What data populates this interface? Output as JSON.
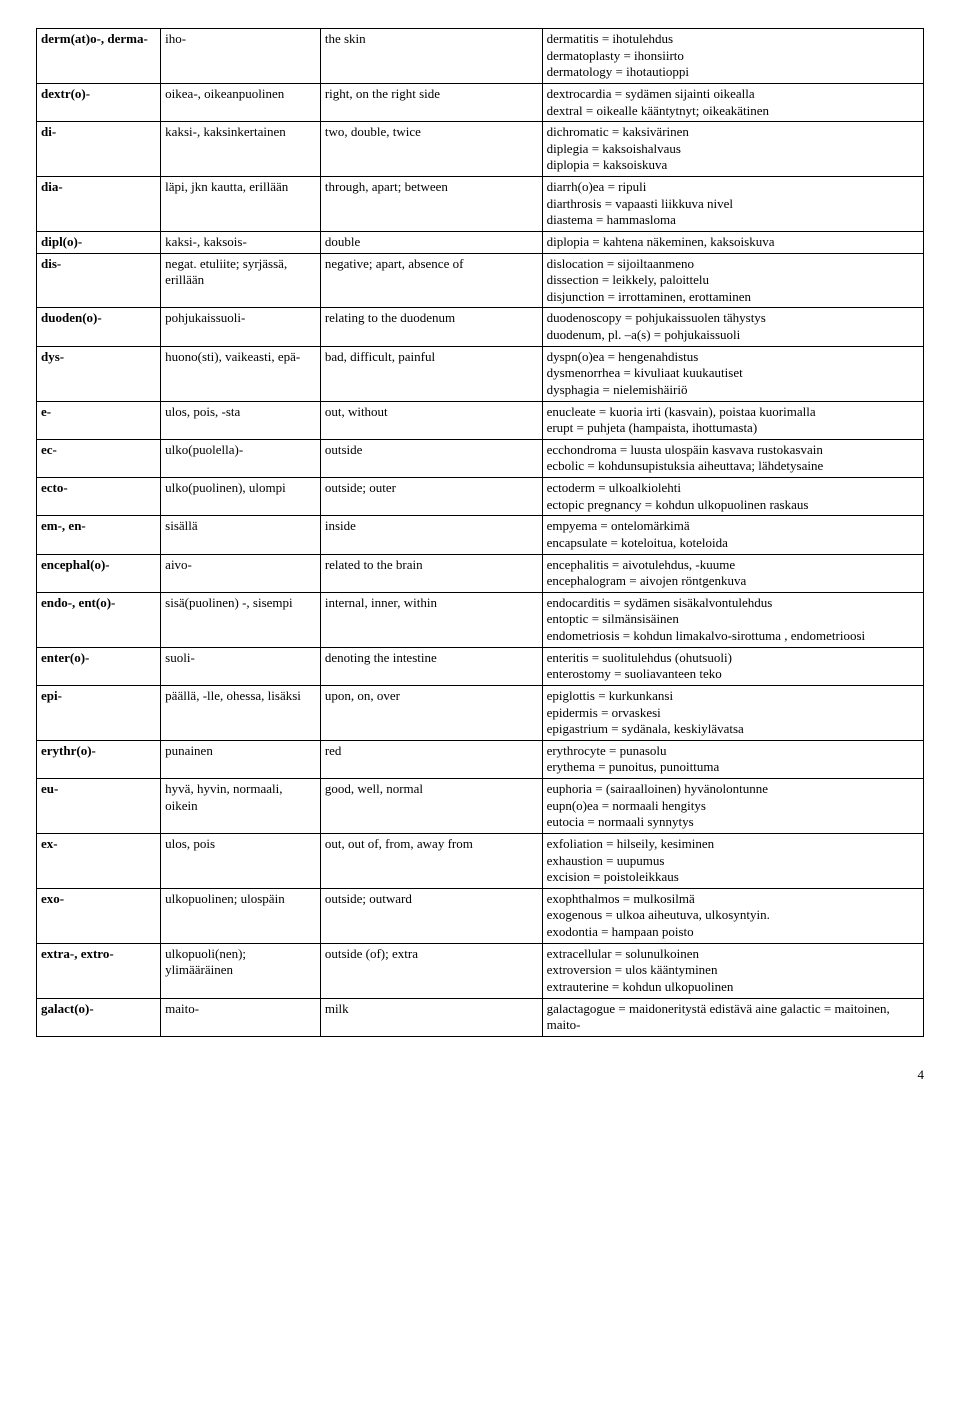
{
  "page_number": "4",
  "rows": [
    {
      "prefix": "derm(at)o-, derma-",
      "fi": "iho-",
      "en": "the skin",
      "ex": "dermatitis = ihotulehdus\ndermatoplasty = ihonsiirto\ndermatology = ihotautioppi"
    },
    {
      "prefix": "dextr(o)-",
      "fi": "oikea-, oikeanpuolinen",
      "en": "right, on the right side",
      "ex": "dextrocardia = sydämen sijainti oikealla\ndextral = oikealle kääntytnyt; oikeakätinen"
    },
    {
      "prefix": "di-",
      "fi": "kaksi-, kaksinkertainen",
      "en": "two, double, twice",
      "ex": "dichromatic = kaksivärinen\ndiplegia = kaksoishalvaus\ndiplopia = kaksoiskuva"
    },
    {
      "prefix": "dia-",
      "fi": "läpi, jkn kautta, erillään",
      "en": "through, apart; between",
      "ex": "diarrh(o)ea = ripuli\ndiarthrosis = vapaasti liikkuva nivel\ndiastema = hammasloma"
    },
    {
      "prefix": "dipl(o)-",
      "fi": "kaksi-, kaksois-",
      "en": "double",
      "ex": "diplopia = kahtena näkeminen, kaksoiskuva"
    },
    {
      "prefix": "dis-",
      "fi": "negat. etuliite; syrjässä, erillään",
      "en": "negative; apart, absence of",
      "ex": "dislocation = sijoiltaanmeno\ndissection = leikkely, paloittelu\ndisjunction = irrottaminen, erottaminen"
    },
    {
      "prefix": "duoden(o)-",
      "fi": "pohjukaissuoli-",
      "en": "relating to the duodenum",
      "ex": "duodenoscopy = pohjukaissuolen tähystys\nduodenum, pl. –a(s) = pohjukaissuoli"
    },
    {
      "prefix": "dys-",
      "fi": "huono(sti), vaikeasti, epä-",
      "en": "bad, difficult, painful",
      "ex": "dyspn(o)ea = hengenahdistus\ndysmenorrhea = kivuliaat kuukautiset\ndysphagia = nielemishäiriö"
    },
    {
      "prefix": "e-",
      "fi": "ulos, pois, -sta",
      "en": "out, without",
      "ex": "enucleate = kuoria irti (kasvain), poistaa kuorimalla\nerupt = puhjeta (hampaista, ihottumasta)"
    },
    {
      "prefix": "ec-",
      "fi": "ulko(puolella)-",
      "en": "outside",
      "ex": "ecchondroma = luusta ulospäin kasvava rustokasvain\necbolic = kohdunsupistuksia aiheuttava; lähdetysaine"
    },
    {
      "prefix": "ecto-",
      "fi": "ulko(puolinen), ulompi",
      "en": "outside; outer",
      "ex": "ectoderm = ulkoalkiolehti\nectopic pregnancy = kohdun ulkopuolinen raskaus"
    },
    {
      "prefix": "em-, en-",
      "fi": "sisällä",
      "en": "inside",
      "ex": "empyema = ontelomärkimä\nencapsulate = koteloitua, koteloida"
    },
    {
      "prefix": "encephal(o)-",
      "fi": "aivo-",
      "en": "related to the brain",
      "ex": "encephalitis = aivotulehdus, -kuume\nencephalogram = aivojen röntgenkuva"
    },
    {
      "prefix": "endo-, ent(o)-",
      "fi": "sisä(puolinen) -, sisempi",
      "en": "internal, inner, within",
      "ex": "endocarditis = sydämen sisäkalvontulehdus\nentoptic = silmänsisäinen\nendometriosis =  kohdun limakalvo-sirottuma , endometrioosi"
    },
    {
      "prefix": "enter(o)-",
      "fi": "suoli-",
      "en": "denoting the intestine",
      "ex": "enteritis = suolitulehdus (ohutsuoli)\nenterostomy = suoliavanteen teko"
    },
    {
      "prefix": "epi-",
      "fi": "päällä, -lle, ohessa, lisäksi",
      "en": "upon, on, over",
      "ex": "epiglottis = kurkunkansi\nepidermis = orvaskesi\nepigastrium = sydänala, keskiylävatsa"
    },
    {
      "prefix": "erythr(o)-",
      "fi": "punainen",
      "en": "red",
      "ex": "erythrocyte = punasolu\nerythema = punoitus, punoittuma"
    },
    {
      "prefix": "eu-",
      "fi": "hyvä, hyvin, normaali, oikein",
      "en": "good, well, normal",
      "ex": "euphoria = (sairaalloinen) hyvänolontunne\neupn(o)ea = normaali hengitys\neutocia = normaali synnytys"
    },
    {
      "prefix": "ex-",
      "fi": "ulos, pois",
      "en": "out, out of, from, away from",
      "ex": "exfoliation = hilseily, kesiminen\nexhaustion = uupumus\nexcision = poistoleikkaus"
    },
    {
      "prefix": "exo-",
      "fi": "ulkopuolinen; ulospäin",
      "en": "outside; outward",
      "ex": "exophthalmos = mulkosilmä\nexogenous =  ulkoa aiheutuva, ulkosyntyin.\nexodontia = hampaan poisto"
    },
    {
      "prefix": "extra-, extro-",
      "fi": "ulkopuoli(nen); ylimääräinen",
      "en": "outside (of); extra",
      "ex": "extracellular = solunulkoinen\nextroversion = ulos kääntyminen\nextrauterine = kohdun ulkopuolinen"
    },
    {
      "prefix": "galact(o)-",
      "fi": "maito-",
      "en": "milk",
      "ex": "galactagogue = maidoneritystä edistävä aine galactic = maitoinen, maito-"
    }
  ]
}
